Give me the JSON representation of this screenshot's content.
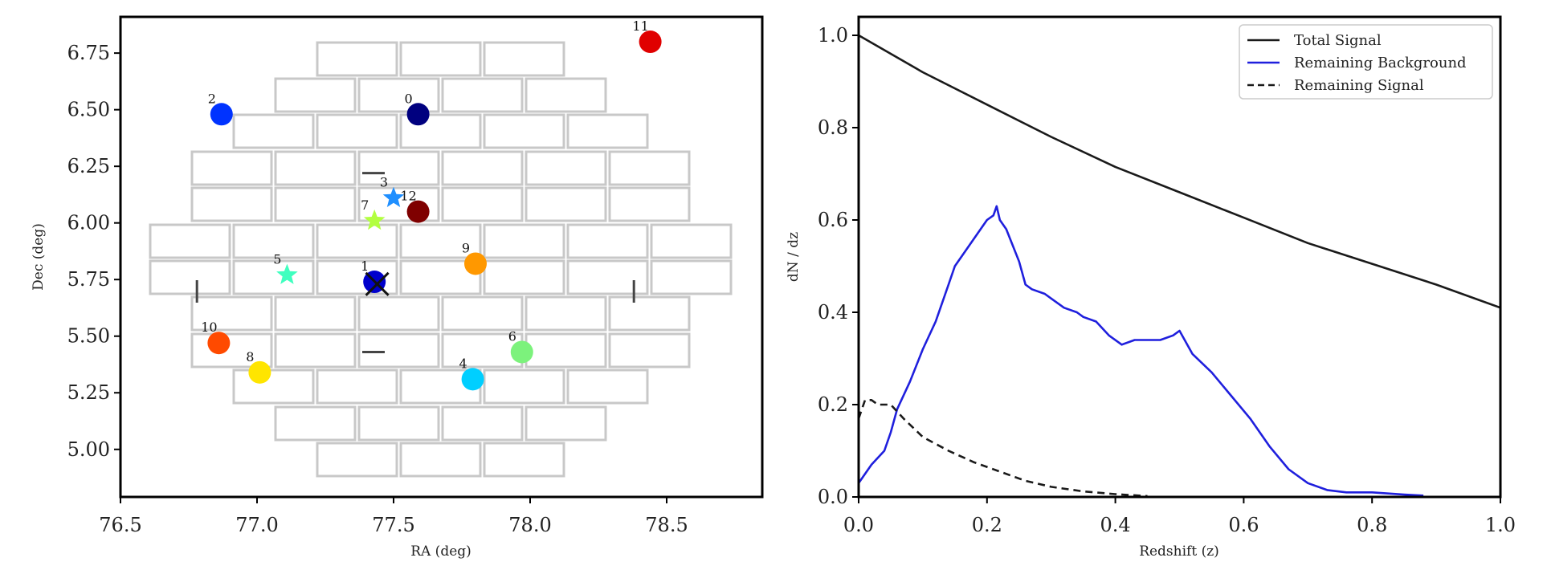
{
  "colors": {
    "frame": "#000000",
    "ccd": "#c8c8c8",
    "total_signal": "#1a1a1a",
    "remaining_background": "#1f1fdd",
    "remaining_signal": "#1a1a1a"
  },
  "chart_data": [
    {
      "type": "scatter",
      "xlabel": "RA (deg)",
      "ylabel": "Dec (deg)",
      "xlim": [
        76.5,
        78.85
      ],
      "ylim": [
        4.79,
        6.91
      ],
      "xticks": [
        "76.5",
        "77.0",
        "77.5",
        "78.0",
        "78.5"
      ],
      "yticks": [
        "5.00",
        "5.25",
        "5.50",
        "5.75",
        "6.00",
        "6.25",
        "6.50",
        "6.75"
      ],
      "grid": false,
      "footprint": "camera CCD layout (grey rectangles)",
      "guide_marks": "vertical bars at RA 76.78 and 78.38, horizontal bars at Dec 6.22 and 5.43",
      "points": [
        {
          "id": "0",
          "ra": 77.59,
          "dec": 6.48,
          "marker": "circle",
          "color": "#00007f"
        },
        {
          "id": "1",
          "ra": 77.43,
          "dec": 5.74,
          "marker": "circle",
          "color": "#0000cc"
        },
        {
          "id": "2",
          "ra": 76.87,
          "dec": 6.48,
          "marker": "circle",
          "color": "#0033ff"
        },
        {
          "id": "3",
          "ra": 77.5,
          "dec": 6.11,
          "marker": "star",
          "color": "#1f8fff"
        },
        {
          "id": "4",
          "ra": 77.79,
          "dec": 5.31,
          "marker": "circle",
          "color": "#00cfff"
        },
        {
          "id": "5",
          "ra": 77.11,
          "dec": 5.77,
          "marker": "star",
          "color": "#3fffbf"
        },
        {
          "id": "6",
          "ra": 77.97,
          "dec": 5.43,
          "marker": "circle",
          "color": "#7cf27c"
        },
        {
          "id": "7",
          "ra": 77.43,
          "dec": 6.01,
          "marker": "star",
          "color": "#b2ff3f"
        },
        {
          "id": "8",
          "ra": 77.01,
          "dec": 5.34,
          "marker": "circle",
          "color": "#ffe500"
        },
        {
          "id": "9",
          "ra": 77.8,
          "dec": 5.82,
          "marker": "circle",
          "color": "#ff9800"
        },
        {
          "id": "10",
          "ra": 76.86,
          "dec": 5.47,
          "marker": "circle",
          "color": "#ff4a00"
        },
        {
          "id": "11",
          "ra": 78.44,
          "dec": 6.8,
          "marker": "circle",
          "color": "#e00000"
        },
        {
          "id": "12",
          "ra": 77.59,
          "dec": 6.05,
          "marker": "circle",
          "color": "#7f0000"
        }
      ],
      "cross_marker": {
        "ra": 77.44,
        "dec": 5.73,
        "marker": "x",
        "color": "#111111"
      }
    },
    {
      "type": "line",
      "xlabel": "Redshift (z)",
      "ylabel": "dN / dz",
      "xlim": [
        0.0,
        1.0
      ],
      "ylim": [
        0.0,
        1.04
      ],
      "xticks": [
        "0.0",
        "0.2",
        "0.4",
        "0.6",
        "0.8",
        "1.0"
      ],
      "yticks": [
        "0.0",
        "0.2",
        "0.4",
        "0.6",
        "0.8",
        "1.0"
      ],
      "grid": false,
      "legend": {
        "location": "top-right",
        "entries": [
          "Total Signal",
          "Remaining Background",
          "Remaining Signal"
        ]
      },
      "series": [
        {
          "name": "Total Signal",
          "style": "solid",
          "x": [
            0.0,
            0.1,
            0.2,
            0.3,
            0.4,
            0.5,
            0.6,
            0.7,
            0.8,
            0.9,
            1.0
          ],
          "y": [
            1.0,
            0.92,
            0.85,
            0.78,
            0.715,
            0.66,
            0.605,
            0.55,
            0.505,
            0.46,
            0.41
          ]
        },
        {
          "name": "Remaining Background",
          "style": "solid",
          "x": [
            0.0,
            0.02,
            0.04,
            0.05,
            0.06,
            0.08,
            0.1,
            0.12,
            0.14,
            0.15,
            0.16,
            0.18,
            0.19,
            0.2,
            0.21,
            0.215,
            0.22,
            0.23,
            0.25,
            0.26,
            0.27,
            0.29,
            0.3,
            0.32,
            0.34,
            0.35,
            0.37,
            0.39,
            0.41,
            0.43,
            0.45,
            0.47,
            0.49,
            0.5,
            0.52,
            0.55,
            0.58,
            0.61,
            0.64,
            0.67,
            0.7,
            0.73,
            0.76,
            0.8,
            0.85,
            0.88
          ],
          "y": [
            0.03,
            0.07,
            0.1,
            0.14,
            0.19,
            0.25,
            0.32,
            0.38,
            0.46,
            0.5,
            0.52,
            0.56,
            0.58,
            0.6,
            0.61,
            0.63,
            0.6,
            0.58,
            0.51,
            0.46,
            0.45,
            0.44,
            0.43,
            0.41,
            0.4,
            0.39,
            0.38,
            0.35,
            0.33,
            0.34,
            0.34,
            0.34,
            0.35,
            0.36,
            0.31,
            0.27,
            0.22,
            0.17,
            0.11,
            0.06,
            0.03,
            0.015,
            0.01,
            0.01,
            0.005,
            0.003
          ]
        },
        {
          "name": "Remaining Signal",
          "style": "dashed",
          "x": [
            0.0,
            0.01,
            0.02,
            0.03,
            0.05,
            0.07,
            0.1,
            0.14,
            0.18,
            0.22,
            0.26,
            0.3,
            0.35,
            0.4,
            0.45
          ],
          "y": [
            0.17,
            0.21,
            0.21,
            0.2,
            0.2,
            0.17,
            0.13,
            0.1,
            0.075,
            0.055,
            0.035,
            0.022,
            0.012,
            0.006,
            0.002
          ]
        }
      ]
    }
  ]
}
